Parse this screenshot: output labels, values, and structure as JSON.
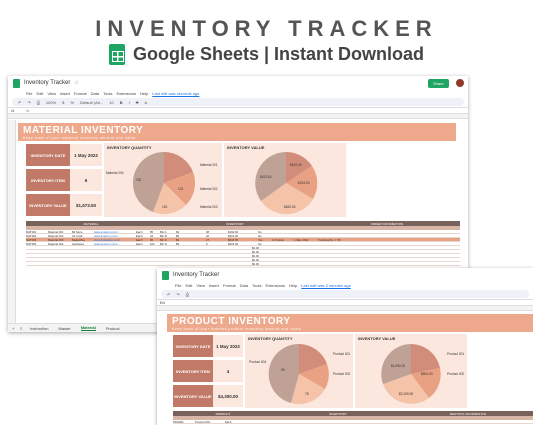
{
  "header": {
    "title": "INVENTORY TRACKER",
    "subtitle": "Google Sheets | Instant Download"
  },
  "window1": {
    "doc_title": "Inventory Tracker",
    "menu": [
      "File",
      "Edit",
      "View",
      "Insert",
      "Format",
      "Data",
      "Tools",
      "Extensions",
      "Help"
    ],
    "last_edit": "Last edit was seconds ago",
    "share": "Share",
    "toolbar_zoom": "100%",
    "toolbar_font": "Default (Ari...",
    "toolbar_size": "10",
    "cell_ref": "I4",
    "banner_title": "MATERIAL INVENTORY",
    "banner_sub": "Keep track of your material inventory amount and value",
    "kpis": [
      {
        "label": "INVENTORY DATE",
        "value": "1 May 2022"
      },
      {
        "label": "INVENTORY ITEM",
        "value": "6"
      },
      {
        "label": "INVENTORY VALUE",
        "value": "$1,673.50"
      }
    ],
    "qty_chart": {
      "title": "INVENTORY QUANTITY",
      "slices": [
        {
          "label": "Material 001",
          "pct": "17.4%"
        },
        {
          "label": "Material 002",
          "pct": "21.2%"
        },
        {
          "label": "Material 003",
          "pct": "18.1%"
        },
        {
          "label": "Material 004",
          "pct": "26.7%"
        }
      ],
      "values": [
        "152",
        "102",
        "120"
      ]
    },
    "val_chart": {
      "title": "INVENTORY VALUE",
      "slices": [
        {
          "label": "Material 001",
          "pct": "10.1%"
        },
        {
          "label": "Material 002",
          "pct": "19.4%"
        },
        {
          "label": "Material 003",
          "pct": "40.5%"
        },
        {
          "label": "Material 004",
          "pct": "27.6%"
        }
      ],
      "values": [
        "$192.00",
        "$315.00",
        "$632.50",
        "$423.00"
      ]
    },
    "table_groups": [
      "MATERIAL",
      "INVENTORY",
      "ORDER INFORMATION"
    ],
    "rows": [
      [
        "MAT001",
        "Material 001",
        "$9 Store",
        "www.amazon.com/...",
        "Each",
        "85",
        "Bin A",
        "$4",
        "38",
        "$192.00",
        "No"
      ],
      [
        "MAT002",
        "Material 002",
        "A2 Craft",
        "www.amazon.com/...",
        "Each",
        "44",
        "Bin B",
        "$9",
        "20",
        "$315.00",
        "No"
      ],
      [
        "MAT003",
        "Material 003",
        "MakeWise",
        "www.makewise.com/...",
        "Each",
        "80",
        "Bin C",
        "$9",
        "27",
        "$632.50",
        "Yes",
        "In Transit",
        "1 May 2022",
        "Tracking No. = TR"
      ],
      [
        "MAT004",
        "Material 004",
        "Hardware",
        "www.amazon.com/...",
        "Each",
        "102",
        "Bin D",
        "$9",
        "0",
        "$423.00",
        "No"
      ]
    ],
    "zero_values": [
      "$0.00",
      "$0.00",
      "$0.00",
      "$0.00",
      "$0.00"
    ],
    "tabs": [
      "Instruction",
      "Master",
      "Material",
      "Product"
    ],
    "active_tab": "Material"
  },
  "window2": {
    "doc_title": "Inventory Tracker",
    "menu": [
      "File",
      "Edit",
      "View",
      "Insert",
      "Format",
      "Data",
      "Tools",
      "Extensions",
      "Help"
    ],
    "last_edit": "Last edit was 2 minutes ago",
    "cell_ref": "B4",
    "banner_title": "PRODUCT INVENTORY",
    "banner_sub": "Keep track of your finished product inventory amount and value",
    "kpis": [
      {
        "label": "INVENTORY DATE",
        "value": "1 May 2022"
      },
      {
        "label": "INVENTORY ITEM",
        "value": "4"
      },
      {
        "label": "INVENTORY VALUE",
        "value": "$4,300.00"
      }
    ],
    "qty_chart": {
      "title": "INVENTORY QUANTITY",
      "slices": [
        {
          "label": "Product 001",
          "pct": ""
        },
        {
          "label": "Product 002",
          "pct": ""
        },
        {
          "label": "Product 003",
          "pct": ""
        },
        {
          "label": "Product 004",
          "pct": ""
        }
      ],
      "values": [
        "95",
        "78"
      ]
    },
    "val_chart": {
      "title": "INVENTORY VALUE",
      "slices": [
        {
          "label": "Product 001",
          "pct": ""
        },
        {
          "label": "Product 002",
          "pct": ""
        },
        {
          "label": "Product 003",
          "pct": ""
        },
        {
          "label": "Product 004",
          "pct": ""
        }
      ],
      "values": [
        "$1,050.00",
        "$600.00",
        "$2,150.00"
      ]
    },
    "table_groups": [
      "PRODUCT",
      "INVENTORY",
      "RESTOCK INFORMATION"
    ],
    "rows": [
      [
        "PRO001",
        "Product 001",
        "Each"
      ],
      [
        "PRO002",
        "Product 002",
        "Each"
      ]
    ]
  },
  "colors": {
    "banner": "#eea98c",
    "kpi_label": "#c27a68",
    "panel": "#fbe7dd",
    "table_header": "#7a625c",
    "sheets_green": "#1fa463"
  }
}
